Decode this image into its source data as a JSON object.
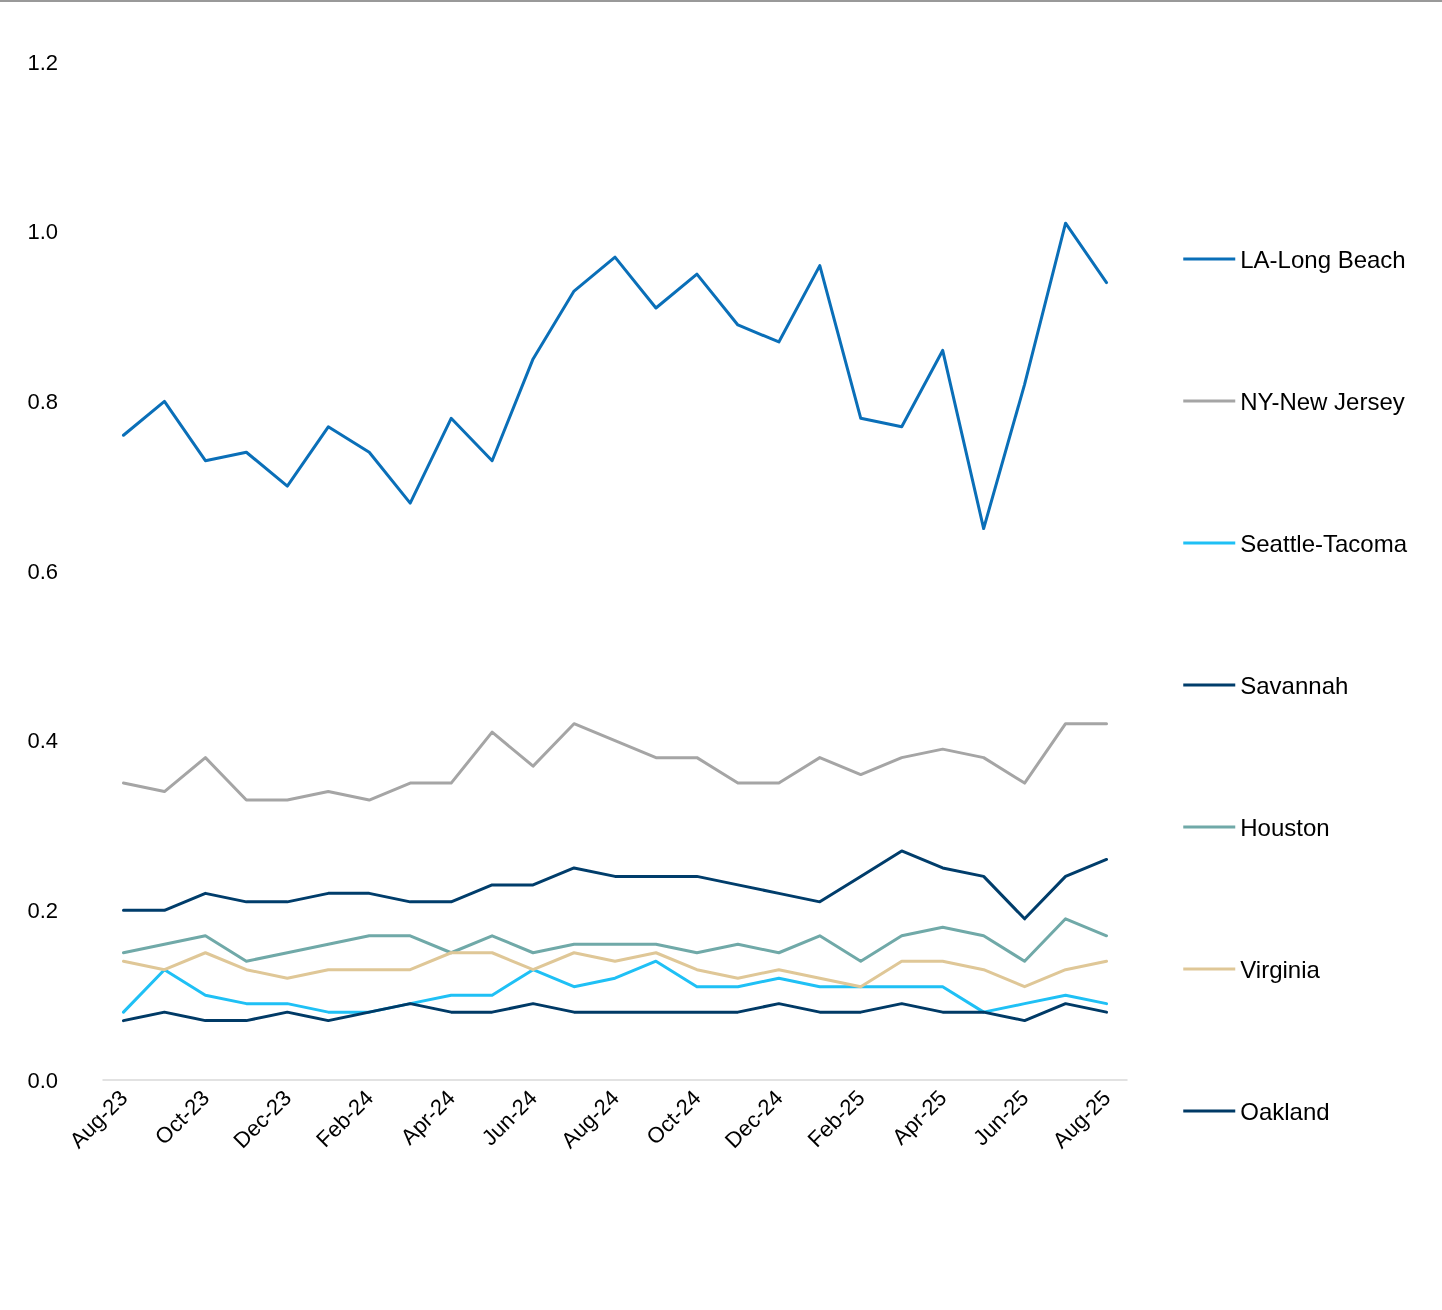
{
  "chart_data": {
    "type": "line",
    "categories": [
      "Aug-23",
      null,
      "Oct-23",
      null,
      "Dec-23",
      null,
      "Feb-24",
      null,
      "Apr-24",
      null,
      "Jun-24",
      null,
      "Aug-24",
      null,
      "Oct-24",
      null,
      "Dec-24",
      null,
      "Feb-25",
      null,
      "Apr-25",
      null,
      "Jun-25",
      null,
      "Aug-25"
    ],
    "series": [
      {
        "name": "LA-Long Beach",
        "color": "#0a6fb8",
        "values": [
          0.76,
          0.8,
          0.73,
          0.74,
          0.7,
          0.77,
          0.74,
          0.68,
          0.78,
          0.73,
          0.85,
          0.93,
          0.97,
          0.91,
          0.95,
          0.89,
          0.87,
          0.96,
          0.78,
          0.77,
          0.86,
          0.65,
          0.82,
          1.01,
          0.94
        ]
      },
      {
        "name": "NY-New Jersey",
        "color": "#a5a5a5",
        "values": [
          0.35,
          0.34,
          0.38,
          0.33,
          0.33,
          0.34,
          0.33,
          0.35,
          0.35,
          0.41,
          0.37,
          0.42,
          0.4,
          0.38,
          0.38,
          0.35,
          0.35,
          0.38,
          0.36,
          0.38,
          0.39,
          0.38,
          0.35,
          0.42,
          0.42
        ]
      },
      {
        "name": "Seattle-Tacoma",
        "color": "#1fc0f5",
        "values": [
          0.08,
          0.13,
          0.1,
          0.09,
          0.09,
          0.08,
          0.08,
          0.09,
          0.1,
          0.1,
          0.13,
          0.11,
          0.12,
          0.14,
          0.11,
          0.11,
          0.12,
          0.11,
          0.11,
          0.11,
          0.11,
          0.08,
          0.09,
          0.1,
          0.09
        ]
      },
      {
        "name": "Savannah",
        "color": "#003d6b",
        "values": [
          0.2,
          0.2,
          0.22,
          0.21,
          0.21,
          0.22,
          0.22,
          0.21,
          0.21,
          0.23,
          0.23,
          0.25,
          0.24,
          0.24,
          0.24,
          0.23,
          0.22,
          0.21,
          0.24,
          0.27,
          0.25,
          0.24,
          0.19,
          0.24,
          0.26
        ]
      },
      {
        "name": "Houston",
        "color": "#70a9a8",
        "values": [
          0.15,
          0.16,
          0.17,
          0.14,
          0.15,
          0.16,
          0.17,
          0.17,
          0.15,
          0.17,
          0.15,
          0.16,
          0.16,
          0.16,
          0.15,
          0.16,
          0.15,
          0.17,
          0.14,
          0.17,
          0.18,
          0.17,
          0.14,
          0.19,
          0.17
        ]
      },
      {
        "name": "Virginia",
        "color": "#dfc797",
        "values": [
          0.14,
          0.13,
          0.15,
          0.13,
          0.12,
          0.13,
          0.13,
          0.13,
          0.15,
          0.15,
          0.13,
          0.15,
          0.14,
          0.15,
          0.13,
          0.12,
          0.13,
          0.12,
          0.11,
          0.14,
          0.14,
          0.13,
          0.11,
          0.13,
          0.14
        ]
      },
      {
        "name": "Oakland",
        "color": "#003a66",
        "values": [
          0.07,
          0.08,
          0.07,
          0.07,
          0.08,
          0.07,
          0.08,
          0.09,
          0.08,
          0.08,
          0.09,
          0.08,
          0.08,
          0.08,
          0.08,
          0.08,
          0.09,
          0.08,
          0.08,
          0.09,
          0.08,
          0.08,
          0.07,
          0.09,
          0.08
        ]
      }
    ],
    "ylim": [
      0,
      1.2
    ],
    "yticks": [
      {
        "value": 0,
        "label": "0.0"
      },
      0.2,
      0.4,
      0.6,
      0.8,
      {
        "value": 1,
        "label": "1.0"
      },
      1.2
    ],
    "grid": false,
    "legend": "right",
    "marker": "none",
    "line_style": "solid"
  }
}
